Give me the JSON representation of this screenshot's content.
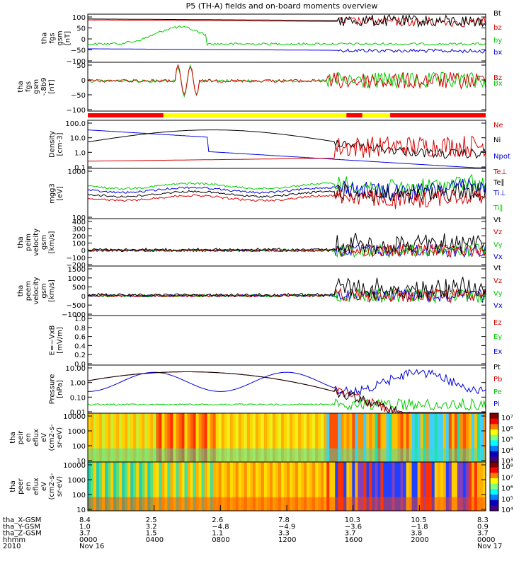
{
  "title": "P5 (TH-A) fields and on-board moments overview",
  "colors": {
    "black": "#000000",
    "red": "#d60000",
    "green": "#00cc00",
    "blue": "#0000e0",
    "yellow": "#ffff00",
    "bar_red": "#ff0000"
  },
  "chart_data": [
    {
      "type": "line",
      "id": "fgs",
      "ylabel": [
        "tha",
        "fgs",
        "gsm",
        "[nT]"
      ],
      "ylim": [
        -100,
        100
      ],
      "yticks": [
        "100",
        "50",
        "0",
        "−50",
        "−100"
      ],
      "series": [
        {
          "name": "Bt",
          "color": "black"
        },
        {
          "name": "bz",
          "color": "red"
        },
        {
          "name": "by",
          "color": "green"
        },
        {
          "name": "bx",
          "color": "blue"
        }
      ]
    },
    {
      "type": "line",
      "id": "fgs_zoom",
      "ylabel": [
        "tha",
        "fgs",
        "gsm",
        "-.8b9",
        "[nT]"
      ],
      "ylim": [
        -125,
        50
      ],
      "yticks": [
        "50",
        "0",
        "−50",
        "−100"
      ],
      "series": [
        {
          "name": "Bz",
          "color": "red"
        },
        {
          "name": "Bx",
          "color": "green"
        }
      ]
    },
    {
      "type": "line",
      "id": "density",
      "ylabel": [
        "Density",
        "[cm-3]"
      ],
      "ylim": [
        0.1,
        100
      ],
      "log": true,
      "yticks": [
        "100.0",
        "10.0",
        "1.0",
        "0.1"
      ],
      "series": [
        {
          "name": "Ne",
          "color": "red"
        },
        {
          "name": "Ni",
          "color": "black"
        },
        {
          "name": "Npot",
          "color": "blue"
        }
      ]
    },
    {
      "type": "line",
      "id": "temp",
      "ylabel": [
        "mgg3",
        "[eV]"
      ],
      "ylim": [
        30,
        5000
      ],
      "log": true,
      "yticks": [
        "1000",
        "100"
      ],
      "series": [
        {
          "name": "Te⊥",
          "color": "red"
        },
        {
          "name": "Te∥",
          "color": "black"
        },
        {
          "name": "Ti⊥",
          "color": "blue"
        },
        {
          "name": "Ti∥",
          "color": "green"
        }
      ]
    },
    {
      "type": "line",
      "id": "peim",
      "ylabel": [
        "tha",
        "peim",
        "velocity",
        "gsm",
        "[km/s]"
      ],
      "ylim": [
        -200,
        400
      ],
      "yticks": [
        "400",
        "300",
        "200",
        "100",
        "0",
        "−100",
        "−200"
      ],
      "series": [
        {
          "name": "Vt",
          "color": "black"
        },
        {
          "name": "Vz",
          "color": "red"
        },
        {
          "name": "Vy",
          "color": "green"
        },
        {
          "name": "Vx",
          "color": "blue"
        }
      ]
    },
    {
      "type": "line",
      "id": "peem",
      "ylabel": [
        "tha",
        "peem",
        "velocity",
        "gsm",
        "[km/s]"
      ],
      "ylim": [
        -1000,
        1500
      ],
      "yticks": [
        "1500",
        "1000",
        "500",
        "0",
        "−500",
        "−1000"
      ],
      "series": [
        {
          "name": "Vt",
          "color": "black"
        },
        {
          "name": "Vz",
          "color": "red"
        },
        {
          "name": "Vy",
          "color": "green"
        },
        {
          "name": "Vx",
          "color": "blue"
        }
      ]
    },
    {
      "type": "line",
      "id": "efield",
      "ylabel": [
        "E=−VxB",
        "[mV/m]"
      ],
      "ylim": [
        0,
        1
      ],
      "yticks": [
        "1.0",
        "0.8",
        "0.6",
        "0.4",
        "0.2",
        "0.0"
      ],
      "series": [
        {
          "name": "Ez",
          "color": "red"
        },
        {
          "name": "Ey",
          "color": "green"
        },
        {
          "name": "Ex",
          "color": "blue"
        }
      ]
    },
    {
      "type": "line",
      "id": "pressure",
      "ylabel": [
        "Pressure",
        "[nPa]"
      ],
      "ylim": [
        0.006,
        30
      ],
      "log": true,
      "yticks": [
        "10.00",
        "1.00",
        "0.10",
        "0.01"
      ],
      "series": [
        {
          "name": "Pt",
          "color": "black"
        },
        {
          "name": "Pb",
          "color": "red"
        },
        {
          "name": "Pe",
          "color": "green"
        },
        {
          "name": "Pi",
          "color": "blue"
        }
      ]
    },
    {
      "type": "heatmap",
      "id": "peir",
      "ylabel": [
        "tha",
        "peir",
        "en",
        "eflux",
        "eV",
        "(cm2-s-",
        "sr-eV)"
      ],
      "yticks": [
        "10000",
        "1000",
        "100",
        "10"
      ],
      "colorbar": [
        "10⁷",
        "10⁶",
        "10⁵",
        "10⁴",
        "10³"
      ]
    },
    {
      "type": "heatmap",
      "id": "peer",
      "ylabel": [
        "tha",
        "peer",
        "en",
        "eflux",
        "eV",
        "(cm2-s-",
        "sr-eV)"
      ],
      "yticks": [
        "10000",
        "1000",
        "100",
        "10"
      ],
      "colorbar": [
        "10⁸",
        "10⁷",
        "10⁶",
        "10⁵",
        "10⁴"
      ]
    }
  ],
  "x_axis": {
    "rows": [
      {
        "label": "tha_X-GSM",
        "values": [
          "8.4",
          "2.5",
          "2.6",
          "7.8",
          "10.3",
          "10.5",
          "8.3"
        ]
      },
      {
        "label": "tha_Y-GSM",
        "values": [
          "1.0",
          "3.2",
          "−4.8",
          "−4.9",
          "−3.6",
          "−1.8",
          "0.9"
        ]
      },
      {
        "label": "tha_Z-GSM",
        "values": [
          "3.7",
          "1.5",
          "1.1",
          "3.3",
          "3.7",
          "3.8",
          "3.7"
        ]
      },
      {
        "label": "hhmm",
        "values": [
          "0000",
          "0400",
          "0800",
          "1200",
          "1600",
          "2000",
          "0000"
        ]
      },
      {
        "label": "2010",
        "values": [
          "Nov 16",
          "",
          "",
          "",
          "",
          "",
          "Nov 17"
        ]
      }
    ]
  }
}
